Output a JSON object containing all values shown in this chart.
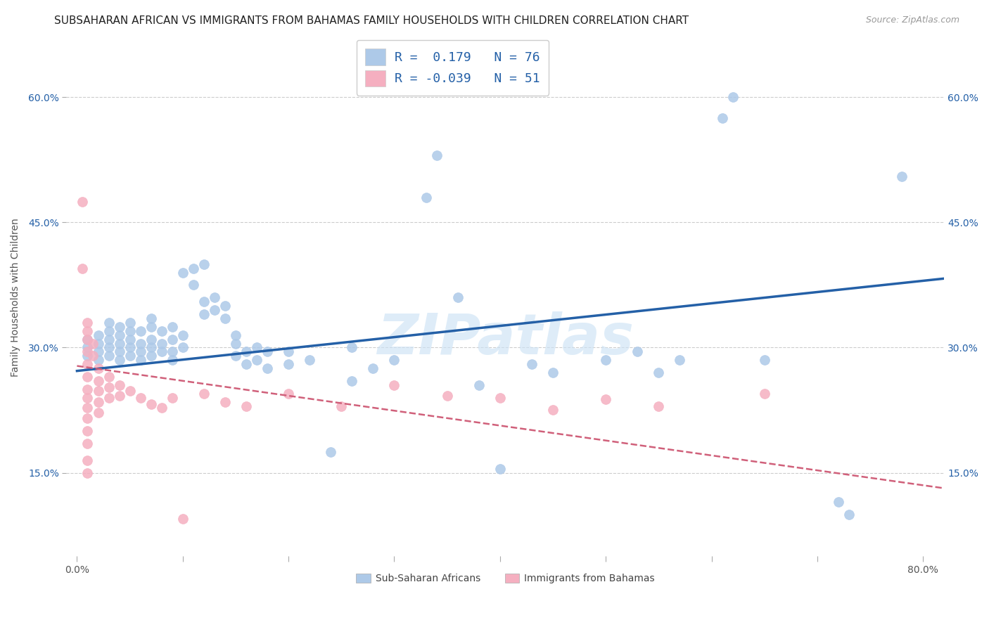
{
  "title": "SUBSAHARAN AFRICAN VS IMMIGRANTS FROM BAHAMAS FAMILY HOUSEHOLDS WITH CHILDREN CORRELATION CHART",
  "source": "Source: ZipAtlas.com",
  "ylabel": "Family Households with Children",
  "xlabel_ticks_labels": [
    "0.0%",
    "",
    "",
    "",
    "",
    "",
    "",
    "",
    "80.0%"
  ],
  "xlabel_vals": [
    0.0,
    0.1,
    0.2,
    0.3,
    0.4,
    0.5,
    0.6,
    0.7,
    0.8
  ],
  "ylabel_ticks": [
    "15.0%",
    "30.0%",
    "45.0%",
    "60.0%"
  ],
  "ylabel_vals": [
    0.15,
    0.3,
    0.45,
    0.6
  ],
  "xlim": [
    -0.01,
    0.82
  ],
  "ylim": [
    0.05,
    0.67
  ],
  "watermark": "ZIPatlas",
  "legend": {
    "blue_r": 0.179,
    "blue_n": 76,
    "pink_r": -0.039,
    "pink_n": 51
  },
  "blue_color": "#adc9e8",
  "blue_line_color": "#2460a7",
  "pink_color": "#f5afc0",
  "pink_line_color": "#d0607a",
  "blue_scatter": [
    [
      0.01,
      0.29
    ],
    [
      0.01,
      0.3
    ],
    [
      0.01,
      0.31
    ],
    [
      0.02,
      0.285
    ],
    [
      0.02,
      0.295
    ],
    [
      0.02,
      0.305
    ],
    [
      0.02,
      0.315
    ],
    [
      0.03,
      0.29
    ],
    [
      0.03,
      0.3
    ],
    [
      0.03,
      0.31
    ],
    [
      0.03,
      0.32
    ],
    [
      0.03,
      0.33
    ],
    [
      0.04,
      0.285
    ],
    [
      0.04,
      0.295
    ],
    [
      0.04,
      0.305
    ],
    [
      0.04,
      0.315
    ],
    [
      0.04,
      0.325
    ],
    [
      0.05,
      0.29
    ],
    [
      0.05,
      0.3
    ],
    [
      0.05,
      0.31
    ],
    [
      0.05,
      0.32
    ],
    [
      0.05,
      0.33
    ],
    [
      0.06,
      0.285
    ],
    [
      0.06,
      0.295
    ],
    [
      0.06,
      0.305
    ],
    [
      0.06,
      0.32
    ],
    [
      0.07,
      0.29
    ],
    [
      0.07,
      0.3
    ],
    [
      0.07,
      0.31
    ],
    [
      0.07,
      0.325
    ],
    [
      0.07,
      0.335
    ],
    [
      0.08,
      0.295
    ],
    [
      0.08,
      0.305
    ],
    [
      0.08,
      0.32
    ],
    [
      0.09,
      0.285
    ],
    [
      0.09,
      0.295
    ],
    [
      0.09,
      0.31
    ],
    [
      0.09,
      0.325
    ],
    [
      0.1,
      0.39
    ],
    [
      0.1,
      0.3
    ],
    [
      0.1,
      0.315
    ],
    [
      0.11,
      0.375
    ],
    [
      0.11,
      0.395
    ],
    [
      0.12,
      0.34
    ],
    [
      0.12,
      0.355
    ],
    [
      0.12,
      0.4
    ],
    [
      0.13,
      0.345
    ],
    [
      0.13,
      0.36
    ],
    [
      0.14,
      0.335
    ],
    [
      0.14,
      0.35
    ],
    [
      0.15,
      0.29
    ],
    [
      0.15,
      0.305
    ],
    [
      0.15,
      0.315
    ],
    [
      0.16,
      0.28
    ],
    [
      0.16,
      0.295
    ],
    [
      0.17,
      0.285
    ],
    [
      0.17,
      0.3
    ],
    [
      0.18,
      0.275
    ],
    [
      0.18,
      0.295
    ],
    [
      0.2,
      0.28
    ],
    [
      0.2,
      0.295
    ],
    [
      0.22,
      0.285
    ],
    [
      0.24,
      0.175
    ],
    [
      0.26,
      0.26
    ],
    [
      0.26,
      0.3
    ],
    [
      0.28,
      0.275
    ],
    [
      0.3,
      0.285
    ],
    [
      0.33,
      0.48
    ],
    [
      0.34,
      0.53
    ],
    [
      0.36,
      0.36
    ],
    [
      0.38,
      0.255
    ],
    [
      0.4,
      0.155
    ],
    [
      0.43,
      0.28
    ],
    [
      0.45,
      0.27
    ],
    [
      0.5,
      0.285
    ],
    [
      0.53,
      0.295
    ],
    [
      0.55,
      0.27
    ],
    [
      0.57,
      0.285
    ],
    [
      0.61,
      0.575
    ],
    [
      0.62,
      0.6
    ],
    [
      0.65,
      0.285
    ],
    [
      0.72,
      0.115
    ],
    [
      0.73,
      0.1
    ],
    [
      0.78,
      0.505
    ]
  ],
  "pink_scatter": [
    [
      0.005,
      0.475
    ],
    [
      0.005,
      0.395
    ],
    [
      0.01,
      0.33
    ],
    [
      0.01,
      0.32
    ],
    [
      0.01,
      0.31
    ],
    [
      0.01,
      0.295
    ],
    [
      0.01,
      0.28
    ],
    [
      0.01,
      0.265
    ],
    [
      0.01,
      0.25
    ],
    [
      0.01,
      0.24
    ],
    [
      0.01,
      0.228
    ],
    [
      0.01,
      0.215
    ],
    [
      0.01,
      0.2
    ],
    [
      0.01,
      0.185
    ],
    [
      0.01,
      0.165
    ],
    [
      0.01,
      0.15
    ],
    [
      0.015,
      0.305
    ],
    [
      0.015,
      0.29
    ],
    [
      0.02,
      0.275
    ],
    [
      0.02,
      0.26
    ],
    [
      0.02,
      0.248
    ],
    [
      0.02,
      0.235
    ],
    [
      0.02,
      0.222
    ],
    [
      0.03,
      0.265
    ],
    [
      0.03,
      0.252
    ],
    [
      0.03,
      0.24
    ],
    [
      0.04,
      0.255
    ],
    [
      0.04,
      0.242
    ],
    [
      0.05,
      0.248
    ],
    [
      0.06,
      0.24
    ],
    [
      0.07,
      0.232
    ],
    [
      0.08,
      0.228
    ],
    [
      0.09,
      0.24
    ],
    [
      0.1,
      0.095
    ],
    [
      0.12,
      0.245
    ],
    [
      0.14,
      0.235
    ],
    [
      0.16,
      0.23
    ],
    [
      0.2,
      0.245
    ],
    [
      0.25,
      0.23
    ],
    [
      0.3,
      0.255
    ],
    [
      0.35,
      0.242
    ],
    [
      0.4,
      0.24
    ],
    [
      0.45,
      0.225
    ],
    [
      0.5,
      0.238
    ],
    [
      0.55,
      0.23
    ],
    [
      0.65,
      0.245
    ]
  ],
  "title_fontsize": 11,
  "axis_label_fontsize": 10,
  "tick_fontsize": 10,
  "source_fontsize": 9
}
